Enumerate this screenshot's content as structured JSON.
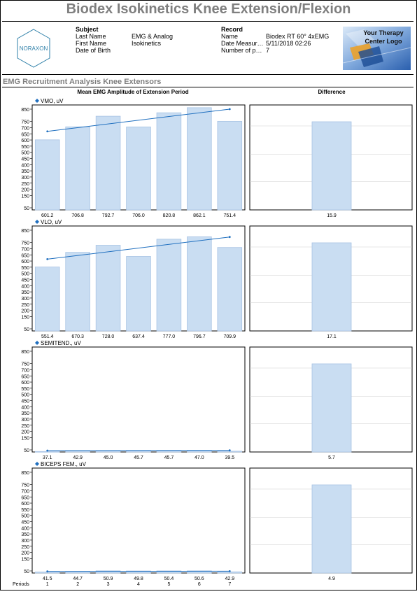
{
  "title": "Biodex Isokinetics Knee Extension/Flexion",
  "logo": {
    "text": "NORAXON"
  },
  "subject": {
    "heading": "Subject",
    "labels": [
      "Last Name",
      "First Name",
      "Date of Birth"
    ],
    "values": [
      "EMG & Analog",
      "Isokinetics",
      ""
    ]
  },
  "record": {
    "heading": "Record",
    "labels": [
      "Name",
      "Date Measur…",
      "Number of p…"
    ],
    "values": [
      "Biodex RT 60° 4xEMG",
      "5/11/2018 02:26",
      "7"
    ]
  },
  "therapy_logo": {
    "line1": "Your Therapy",
    "line2": "Center Logo"
  },
  "section_title": "EMG Recruitment Analysis Knee Extensors",
  "columns": {
    "left": "Mean EMG Amplitude of Extension Period",
    "right": "Difference"
  },
  "periods_label": "Periods",
  "colors": {
    "bar_fill": "#c9ddf2",
    "bar_stroke": "#a9c4e4",
    "trend": "#1f6fbf",
    "grid": "#d0d0d0"
  },
  "chart_data": [
    {
      "type": "bar",
      "series_name": "VMO, uV",
      "categories": [
        "1",
        "2",
        "3",
        "4",
        "5",
        "6",
        "7"
      ],
      "values": [
        601.2,
        706.8,
        792.7,
        706.0,
        820.8,
        862.1,
        751.4
      ],
      "trend": [
        670,
        850
      ],
      "difference": 15.9,
      "yticks": [
        50,
        150,
        200,
        250,
        300,
        350,
        400,
        450,
        500,
        550,
        600,
        650,
        700,
        750,
        850
      ]
    },
    {
      "type": "bar",
      "series_name": "VLO, uV",
      "categories": [
        "1",
        "2",
        "3",
        "4",
        "5",
        "6",
        "7"
      ],
      "values": [
        551.4,
        670.3,
        728.0,
        637.4,
        777.0,
        796.7,
        709.9
      ],
      "trend": [
        615,
        795
      ],
      "difference": 17.1,
      "yticks": [
        50,
        150,
        200,
        250,
        300,
        350,
        400,
        450,
        500,
        550,
        600,
        650,
        700,
        750,
        850
      ]
    },
    {
      "type": "bar",
      "series_name": "SEMITEND., uV",
      "categories": [
        "1",
        "2",
        "3",
        "4",
        "5",
        "6",
        "7"
      ],
      "values": [
        37.1,
        42.9,
        45.0,
        45.7,
        45.7,
        47.0,
        39.5
      ],
      "trend": [
        44,
        46
      ],
      "difference": 5.7,
      "yticks": [
        50,
        150,
        200,
        250,
        300,
        350,
        400,
        450,
        500,
        550,
        600,
        650,
        700,
        750,
        850
      ]
    },
    {
      "type": "bar",
      "series_name": "BICEPS FEM., uV",
      "categories": [
        "1",
        "2",
        "3",
        "4",
        "5",
        "6",
        "7"
      ],
      "values": [
        41.5,
        44.7,
        50.9,
        49.8,
        50.4,
        50.6,
        42.9
      ],
      "trend": [
        46,
        48
      ],
      "difference": 4.9,
      "yticks": [
        50,
        150,
        200,
        250,
        300,
        350,
        400,
        450,
        500,
        550,
        600,
        650,
        700,
        750,
        850
      ]
    }
  ]
}
